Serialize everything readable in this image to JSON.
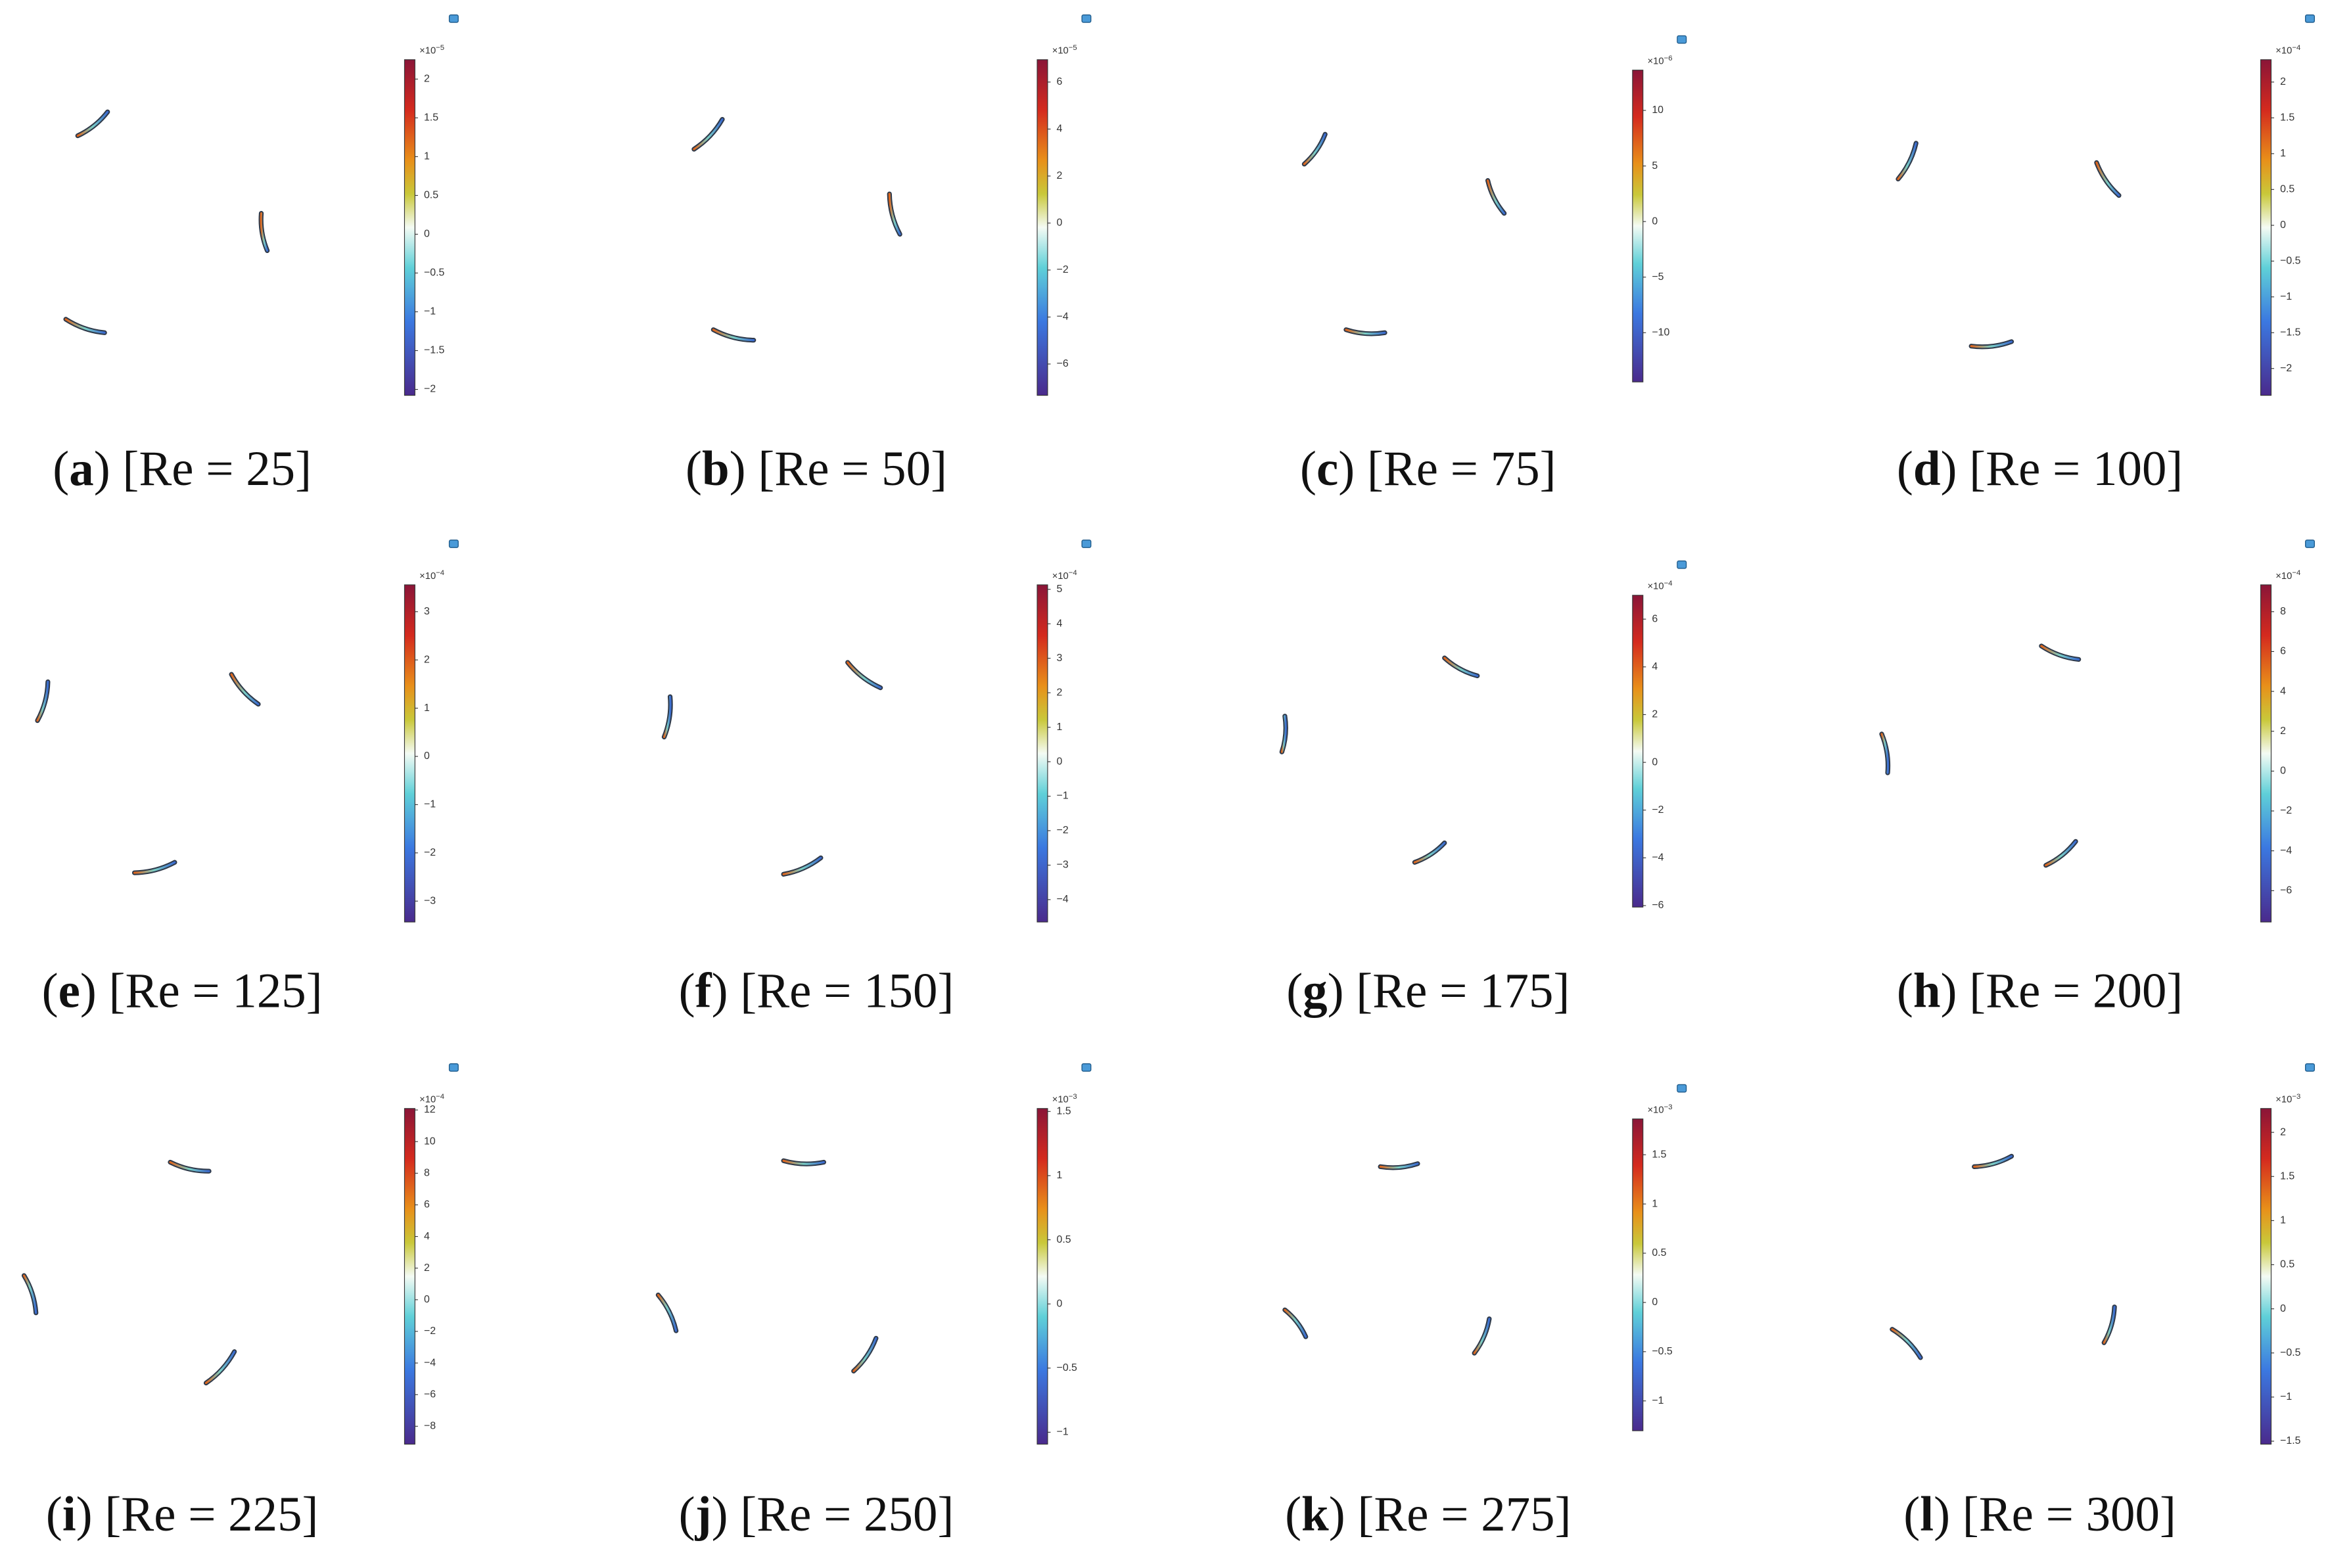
{
  "panels": [
    {
      "letter": "a",
      "caption": "[Re = 25]",
      "scale": "×10",
      "exponent": "−5",
      "ticks": [
        "2",
        "1.5",
        "1",
        "0.5",
        "0",
        "−0.5",
        "−1",
        "−1.5",
        "−2"
      ]
    },
    {
      "letter": "b",
      "caption": "[Re = 50]",
      "scale": "×10",
      "exponent": "−5",
      "ticks": [
        "6",
        "4",
        "2",
        "0",
        "−2",
        "−4",
        "−6"
      ]
    },
    {
      "letter": "c",
      "caption": "[Re = 75]",
      "scale": "×10",
      "exponent": "−6",
      "ticks": [
        "10",
        "5",
        "0",
        "−5",
        "−10"
      ]
    },
    {
      "letter": "d",
      "caption": "[Re = 100]",
      "scale": "×10",
      "exponent": "−4",
      "ticks": [
        "2",
        "1.5",
        "1",
        "0.5",
        "0",
        "−0.5",
        "−1",
        "−1.5",
        "−2"
      ]
    },
    {
      "letter": "e",
      "caption": "[Re = 125]",
      "scale": "×10",
      "exponent": "−4",
      "ticks": [
        "3",
        "2",
        "1",
        "0",
        "−1",
        "−2",
        "−3"
      ]
    },
    {
      "letter": "f",
      "caption": "[Re = 150]",
      "scale": "×10",
      "exponent": "−4",
      "ticks": [
        "5",
        "4",
        "3",
        "2",
        "1",
        "0",
        "−1",
        "−2",
        "−3",
        "−4"
      ]
    },
    {
      "letter": "g",
      "caption": "[Re = 175]",
      "scale": "×10",
      "exponent": "−4",
      "ticks": [
        "6",
        "4",
        "2",
        "0",
        "−2",
        "−4",
        "−6"
      ]
    },
    {
      "letter": "h",
      "caption": "[Re = 200]",
      "scale": "×10",
      "exponent": "−4",
      "ticks": [
        "8",
        "6",
        "4",
        "2",
        "0",
        "−2",
        "−4",
        "−6"
      ]
    },
    {
      "letter": "i",
      "caption": "[Re = 225]",
      "scale": "×10",
      "exponent": "−4",
      "ticks": [
        "12",
        "10",
        "8",
        "6",
        "4",
        "2",
        "0",
        "−2",
        "−4",
        "−6",
        "−8"
      ]
    },
    {
      "letter": "j",
      "caption": "[Re = 250]",
      "scale": "×10",
      "exponent": "−3",
      "ticks": [
        "1.5",
        "1",
        "0.5",
        "0",
        "−0.5",
        "−1"
      ]
    },
    {
      "letter": "k",
      "caption": "[Re = 275]",
      "scale": "×10",
      "exponent": "−3",
      "ticks": [
        "1.5",
        "1",
        "0.5",
        "0",
        "−0.5",
        "−1"
      ]
    },
    {
      "letter": "l",
      "caption": "[Re = 300]",
      "scale": "×10",
      "exponent": "−3",
      "ticks": [
        "2",
        "1.5",
        "1",
        "0.5",
        "0",
        "−0.5",
        "−1",
        "−1.5"
      ]
    }
  ]
}
